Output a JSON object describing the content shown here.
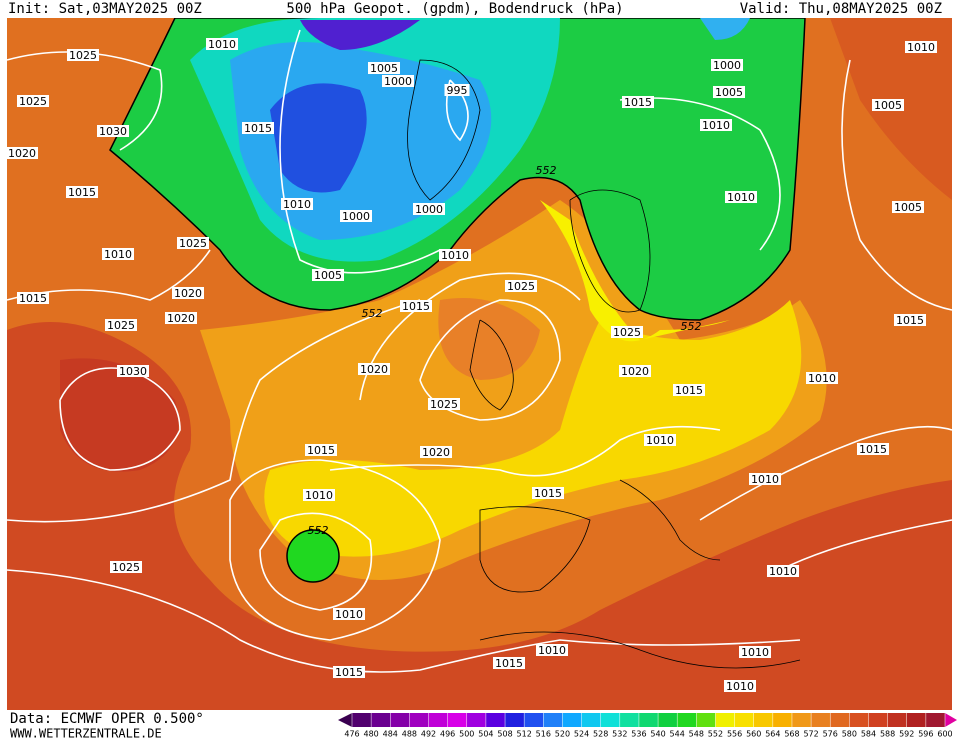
{
  "header": {
    "init": "Init: Sat,03MAY2025 00Z",
    "title": "500 hPa Geopot. (gpdm), Bodendruck (hPa)",
    "valid": "Valid: Thu,08MAY2025 00Z"
  },
  "footer": {
    "source": "Data: ECMWF OPER 0.500°",
    "website": "WWW.WETTERZENTRALE.DE"
  },
  "colorbar": {
    "levels": [
      476,
      480,
      484,
      488,
      492,
      496,
      500,
      504,
      508,
      512,
      516,
      520,
      524,
      528,
      532,
      536,
      540,
      544,
      548,
      552,
      556,
      560,
      564,
      568,
      572,
      576,
      580,
      584,
      588,
      592,
      596,
      600
    ],
    "colors": [
      "#3a0050",
      "#50006e",
      "#6a0090",
      "#8400a8",
      "#a000c0",
      "#c000d8",
      "#d800e8",
      "#a000e0",
      "#5a00e0",
      "#2020e0",
      "#2050f0",
      "#2080f8",
      "#10a8ff",
      "#10c8f0",
      "#10e0d8",
      "#10e0a0",
      "#10d870",
      "#10d040",
      "#20d820",
      "#60e010",
      "#f0f000",
      "#f8e000",
      "#f8c800",
      "#f8b000",
      "#f09818",
      "#e88020",
      "#e06820",
      "#d85020",
      "#d04020",
      "#c03020",
      "#b02020",
      "#a01830",
      "#e000a0"
    ]
  },
  "isobar_labels": [
    "1025",
    "1025",
    "1030",
    "1020",
    "1015",
    "1010",
    "1015",
    "1025",
    "1020",
    "1020",
    "1025",
    "1030",
    "1010",
    "1005",
    "1000",
    "995",
    "1015",
    "1010",
    "1000",
    "1000",
    "1005",
    "1010",
    "1015",
    "552",
    "552",
    "1025",
    "1020",
    "1025",
    "1020",
    "1015",
    "1010",
    "552",
    "1015",
    "1025",
    "552",
    "1020",
    "1015",
    "1010",
    "1010",
    "1010",
    "1015",
    "1015",
    "1010",
    "1025",
    "1010",
    "1015",
    "1015",
    "1010",
    "1010",
    "1010",
    "1000",
    "1005",
    "1015",
    "1010",
    "1010",
    "1010",
    "1005",
    "1005"
  ]
}
